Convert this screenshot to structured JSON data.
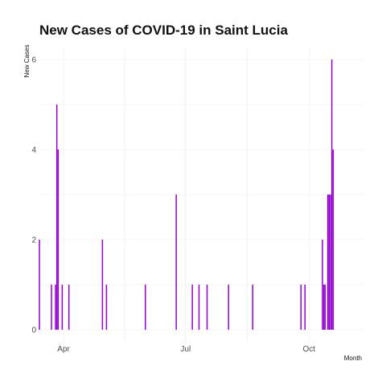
{
  "chart_data": {
    "type": "bar",
    "title": "New Cases of COVID-19 in Saint Lucia",
    "xlabel": "Month",
    "ylabel": "New Cases",
    "ylim": [
      0,
      6
    ],
    "yticks": [
      0,
      2,
      4,
      6
    ],
    "xlim": [
      "2020-03-14",
      "2020-11-10"
    ],
    "xticks": [
      {
        "date": "2020-04-01",
        "label": "Apr"
      },
      {
        "date": "2020-07-01",
        "label": "Jul"
      },
      {
        "date": "2020-10-01",
        "label": "Oct"
      }
    ],
    "grid": true,
    "bar_color": "#9400D3",
    "series": [
      {
        "values": [
          {
            "x": "2020-03-14",
            "y": 2
          },
          {
            "x": "2020-03-23",
            "y": 1
          },
          {
            "x": "2020-03-26",
            "y": 1
          },
          {
            "x": "2020-03-27",
            "y": 5
          },
          {
            "x": "2020-03-28",
            "y": 4
          },
          {
            "x": "2020-03-31",
            "y": 1
          },
          {
            "x": "2020-04-05",
            "y": 1
          },
          {
            "x": "2020-04-30",
            "y": 2
          },
          {
            "x": "2020-05-03",
            "y": 1
          },
          {
            "x": "2020-06-01",
            "y": 1
          },
          {
            "x": "2020-06-24",
            "y": 3
          },
          {
            "x": "2020-07-06",
            "y": 1
          },
          {
            "x": "2020-07-11",
            "y": 1
          },
          {
            "x": "2020-07-17",
            "y": 1
          },
          {
            "x": "2020-08-02",
            "y": 1
          },
          {
            "x": "2020-08-20",
            "y": 1
          },
          {
            "x": "2020-09-25",
            "y": 1
          },
          {
            "x": "2020-09-28",
            "y": 1
          },
          {
            "x": "2020-10-11",
            "y": 2
          },
          {
            "x": "2020-10-12",
            "y": 1
          },
          {
            "x": "2020-10-13",
            "y": 1
          },
          {
            "x": "2020-10-15",
            "y": 3
          },
          {
            "x": "2020-10-16",
            "y": 3
          },
          {
            "x": "2020-10-17",
            "y": 3
          },
          {
            "x": "2020-10-18",
            "y": 6
          },
          {
            "x": "2020-10-19",
            "y": 4
          }
        ]
      }
    ]
  }
}
